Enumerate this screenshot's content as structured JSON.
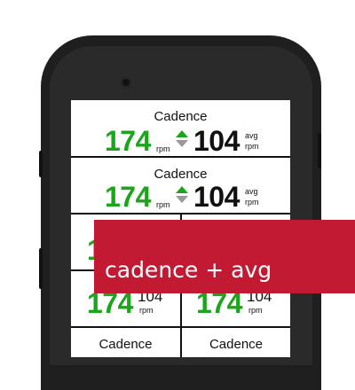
{
  "screen": {
    "field1": {
      "title": "Cadence",
      "value": "174",
      "unit": "rpm",
      "avg_value": "104",
      "avg_label": "avg",
      "avg_unit": "rpm"
    },
    "field2": {
      "title": "Cadence",
      "value": "174",
      "unit": "rpm",
      "avg_value": "104",
      "avg_label": "avg",
      "avg_unit": "rpm"
    },
    "field3": {
      "partial_value": "1"
    },
    "field4_left": {
      "value": "174",
      "avg_value": "104",
      "unit": "rpm"
    },
    "field4_right": {
      "value": "174",
      "avg_value": "104",
      "unit": "rpm"
    },
    "field5_left": {
      "title": "Cadence"
    },
    "field5_right": {
      "title": "Cadence"
    }
  },
  "overlay": {
    "label": "cadence + avg"
  },
  "icons": {
    "trend": "up-down-trend-icon"
  },
  "colors": {
    "value_green": "#1aa51a",
    "overlay_red": "#c31a34",
    "device": "#1f1f1f"
  }
}
